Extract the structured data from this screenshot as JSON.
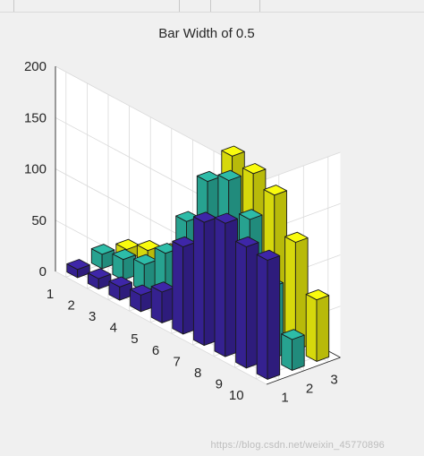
{
  "window": {
    "watermark": "https://blog.csdn.net/weixin_45770896"
  },
  "chart_data": {
    "type": "bar3",
    "title": "Bar Width of 0.5",
    "bar_width": 0.5,
    "x_ticks": [
      "1",
      "2",
      "3"
    ],
    "y_ticks": [
      "1",
      "2",
      "3",
      "4",
      "5",
      "6",
      "7",
      "8",
      "9",
      "10"
    ],
    "z_ticks": [
      "0",
      "50",
      "100",
      "150",
      "200"
    ],
    "zlim": [
      0,
      200
    ],
    "grid": true,
    "rows": [
      "1",
      "2",
      "3",
      "4",
      "5",
      "6",
      "7",
      "8",
      "9",
      "10"
    ],
    "series": [
      {
        "name": "",
        "color": "#3e26a8",
        "values": [
          8,
          10,
          13,
          16,
          30,
          85,
          120,
          130,
          118,
          116
        ]
      },
      {
        "name": "",
        "color": "#2dbca8",
        "values": [
          14,
          20,
          26,
          48,
          90,
          140,
          152,
          125,
          70,
          30
        ]
      },
      {
        "name": "",
        "color": "#f9fb0e",
        "values": [
          10,
          20,
          28,
          32,
          60,
          156,
          150,
          140,
          105,
          60
        ]
      }
    ]
  }
}
